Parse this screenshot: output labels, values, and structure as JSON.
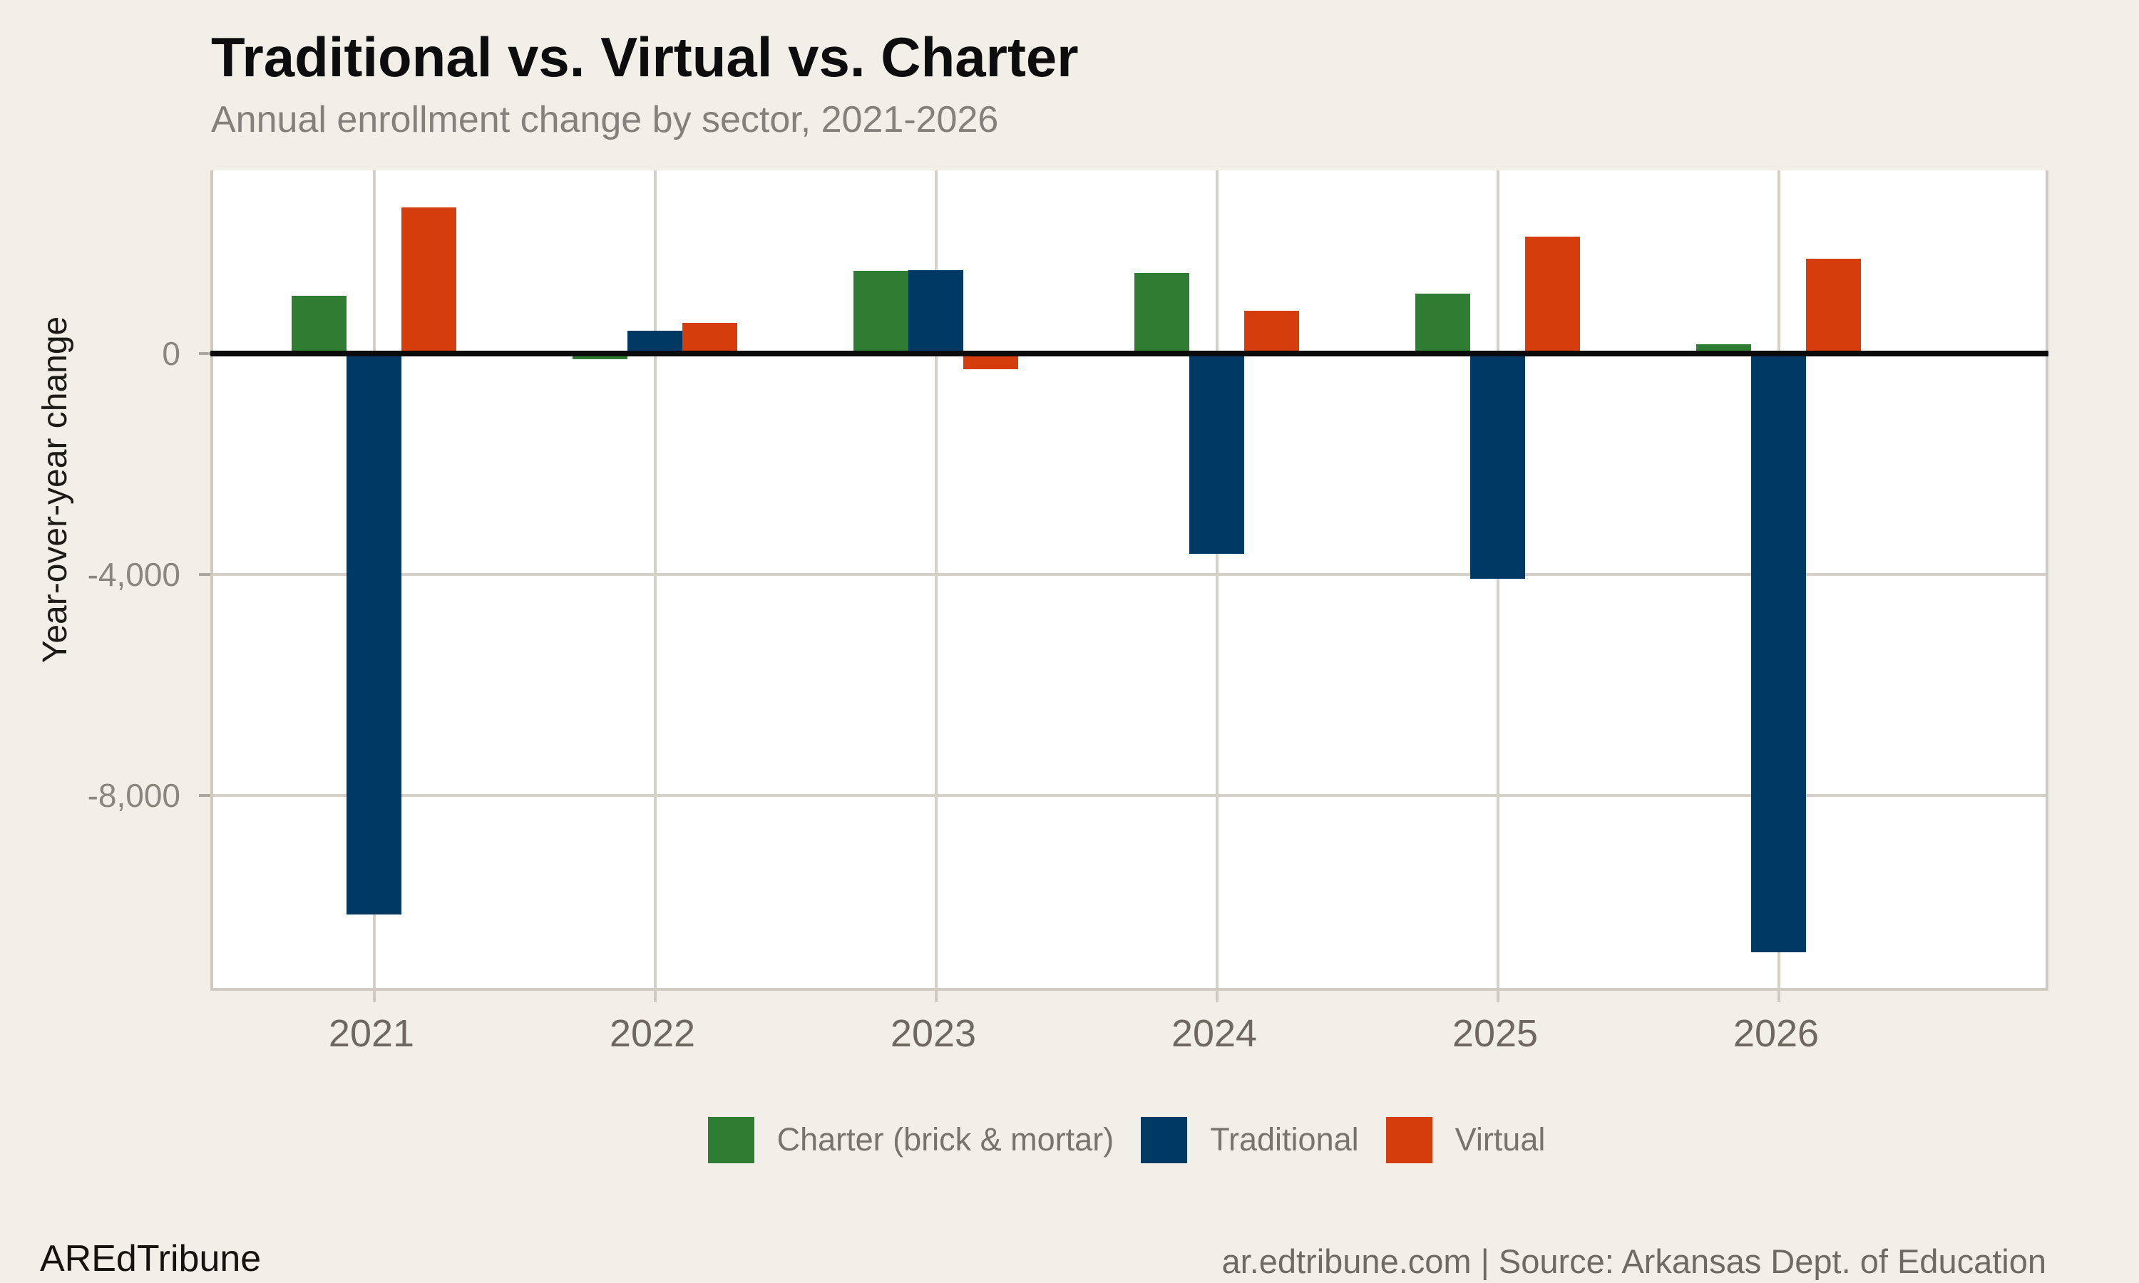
{
  "page": {
    "title": "Traditional vs. Virtual vs. Charter",
    "subtitle": "Annual enrollment change by sector, 2021-2026",
    "footer_left": "AREdTribune",
    "footer_right": "ar.edtribune.com | Source: Arkansas Dept. of Education"
  },
  "chart_data": {
    "type": "bar",
    "title": "Traditional vs. Virtual vs. Charter",
    "subtitle": "Annual enrollment change by sector, 2021-2026",
    "categories": [
      "2021",
      "2022",
      "2023",
      "2024",
      "2025",
      "2026"
    ],
    "series": [
      {
        "name": "Charter (brick & mortar)",
        "color": "#2e7d33",
        "values": [
          1050,
          -100,
          1500,
          1455,
          1090,
          165
        ]
      },
      {
        "name": "Traditional",
        "color": "#003a64",
        "values": [
          -10150,
          410,
          1515,
          -3625,
          -4075,
          -10845
        ]
      },
      {
        "name": "Virtual",
        "color": "#d53d0d",
        "values": [
          2650,
          550,
          -290,
          775,
          2110,
          1720
        ]
      }
    ],
    "xlabel": "",
    "ylabel": "Year-over-year change",
    "yticks": [
      {
        "label": "0",
        "value": 0
      },
      {
        "label": "-4,000",
        "value": -4000
      },
      {
        "label": "-8,000",
        "value": -8000
      }
    ],
    "ylim": [
      -11480,
      3320
    ],
    "grid": true,
    "gridline_color": "#d6d1c8",
    "plot_background": "#ffffff",
    "page_background": "#f2efe9",
    "zero_line_color": "#0b0b0b",
    "legend_position": "bottom"
  }
}
